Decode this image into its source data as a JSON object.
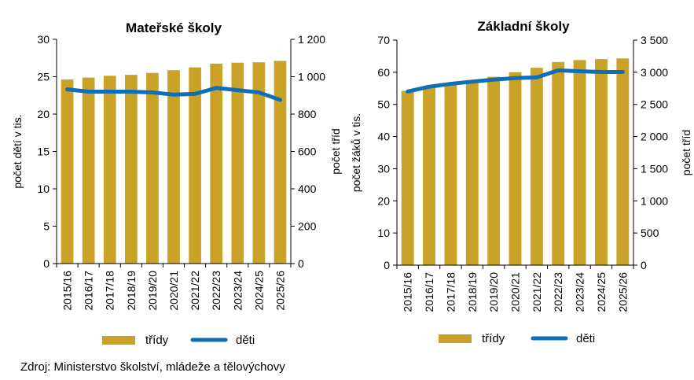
{
  "source": "Zdroj: Ministerstvo školství, mládeže a tělovýchovy",
  "colors": {
    "bars": "#C9A227",
    "line": "#0F6FB6",
    "axis": "#000000"
  },
  "chart_data": [
    {
      "type": "bar",
      "title": "Mateřské školy",
      "ylabel": "počet dětí v tis.",
      "y2label": "počet tříd",
      "ylim": [
        0,
        30
      ],
      "yticks": [
        0,
        5,
        10,
        15,
        20,
        25,
        30
      ],
      "y2lim": [
        0,
        1200
      ],
      "y2ticks": [
        "0",
        "200",
        "400",
        "600",
        "800",
        "1 000",
        "1 200"
      ],
      "categories": [
        "2015/16",
        "2016/17",
        "2017/18",
        "2018/19",
        "2019/20",
        "2020/21",
        "2021/22",
        "2022/23",
        "2023/24",
        "2024/25",
        "2025/26"
      ],
      "series": [
        {
          "name": "třídy",
          "type": "bar",
          "axis": "right",
          "values": [
            985,
            995,
            1005,
            1010,
            1020,
            1035,
            1050,
            1070,
            1075,
            1077,
            1085
          ]
        },
        {
          "name": "děti",
          "type": "line",
          "axis": "left",
          "values": [
            23.3,
            23.0,
            23.0,
            23.0,
            22.9,
            22.6,
            22.7,
            23.5,
            23.2,
            22.9,
            21.9
          ]
        }
      ],
      "legend": "bottom"
    },
    {
      "type": "bar",
      "title": "Základní školy",
      "ylabel": "počet žáků v tis.",
      "y2label": "počet tříd",
      "ylim": [
        0,
        70
      ],
      "yticks": [
        0,
        10,
        20,
        30,
        40,
        50,
        60,
        70
      ],
      "y2lim": [
        0,
        3500
      ],
      "y2ticks": [
        "0",
        "500",
        "1 000",
        "1 500",
        "2 000",
        "2 500",
        "3 000",
        "3 500"
      ],
      "categories": [
        "2015/16",
        "2016/17",
        "2017/18",
        "2018/19",
        "2019/20",
        "2020/21",
        "2021/22",
        "2022/23",
        "2023/24",
        "2024/25",
        "2025/26"
      ],
      "series": [
        {
          "name": "třídy",
          "type": "bar",
          "axis": "right",
          "values": [
            2710,
            2780,
            2830,
            2880,
            2930,
            3000,
            3070,
            3160,
            3190,
            3205,
            3215
          ]
        },
        {
          "name": "děti",
          "type": "line",
          "axis": "left",
          "values": [
            54.0,
            55.5,
            56.4,
            57.1,
            57.7,
            58.2,
            58.4,
            60.6,
            60.3,
            60.1,
            60.1
          ]
        }
      ],
      "legend": "bottom"
    }
  ]
}
